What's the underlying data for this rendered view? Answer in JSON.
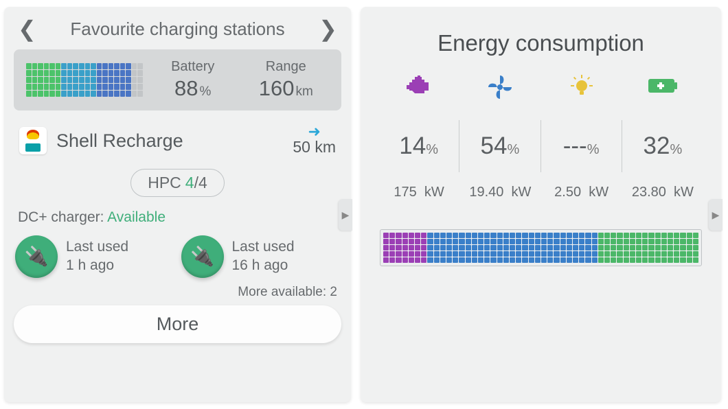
{
  "left": {
    "title": "Favourite charging stations",
    "battery": {
      "label": "Battery",
      "value": "88",
      "unit": "%",
      "grid": {
        "cols": 20,
        "rows": 5,
        "filled_cols": 18,
        "colors_by_col_range": [
          {
            "from": 0,
            "to": 6,
            "color": "#4cc36a"
          },
          {
            "from": 6,
            "to": 12,
            "color": "#3aa0c9"
          },
          {
            "from": 12,
            "to": 18,
            "color": "#4a75c4"
          }
        ],
        "empty_color": "#c2c5c7"
      }
    },
    "range": {
      "label": "Range",
      "value": "160",
      "unit": "km"
    },
    "station": {
      "name": "Shell Recharge",
      "distance_value": "50",
      "distance_unit": "km"
    },
    "hpc": {
      "label": "HPC",
      "available": "4",
      "total": "4"
    },
    "dc_label": "DC+ charger:",
    "dc_status": "Available",
    "plugs": [
      {
        "last_used_label": "Last used",
        "ago": "1 h ago"
      },
      {
        "last_used_label": "Last used",
        "ago": "16 h ago"
      }
    ],
    "more_available_label": "More available:",
    "more_available_count": "2",
    "more_button": "More"
  },
  "right": {
    "title": "Energy consumption",
    "columns": [
      {
        "icon": "engine",
        "color": "#9b3fb5",
        "percent": "14",
        "kw": "175"
      },
      {
        "icon": "fan",
        "color": "#3a7fc9",
        "percent": "54",
        "kw": "19.40"
      },
      {
        "icon": "bulb",
        "color": "#e7c33b",
        "percent": "---",
        "kw": "2.50"
      },
      {
        "icon": "battery",
        "color": "#4bb768",
        "percent": "32",
        "kw": "23.80"
      }
    ],
    "percent_unit": "%",
    "kw_unit": "kW",
    "bar": {
      "cols": 50,
      "rows": 5,
      "segments": [
        {
          "from": 0,
          "to": 7,
          "color": "#9b3fb5"
        },
        {
          "from": 7,
          "to": 34,
          "color": "#3a7fc9"
        },
        {
          "from": 34,
          "to": 50,
          "color": "#4bb768"
        }
      ]
    }
  }
}
